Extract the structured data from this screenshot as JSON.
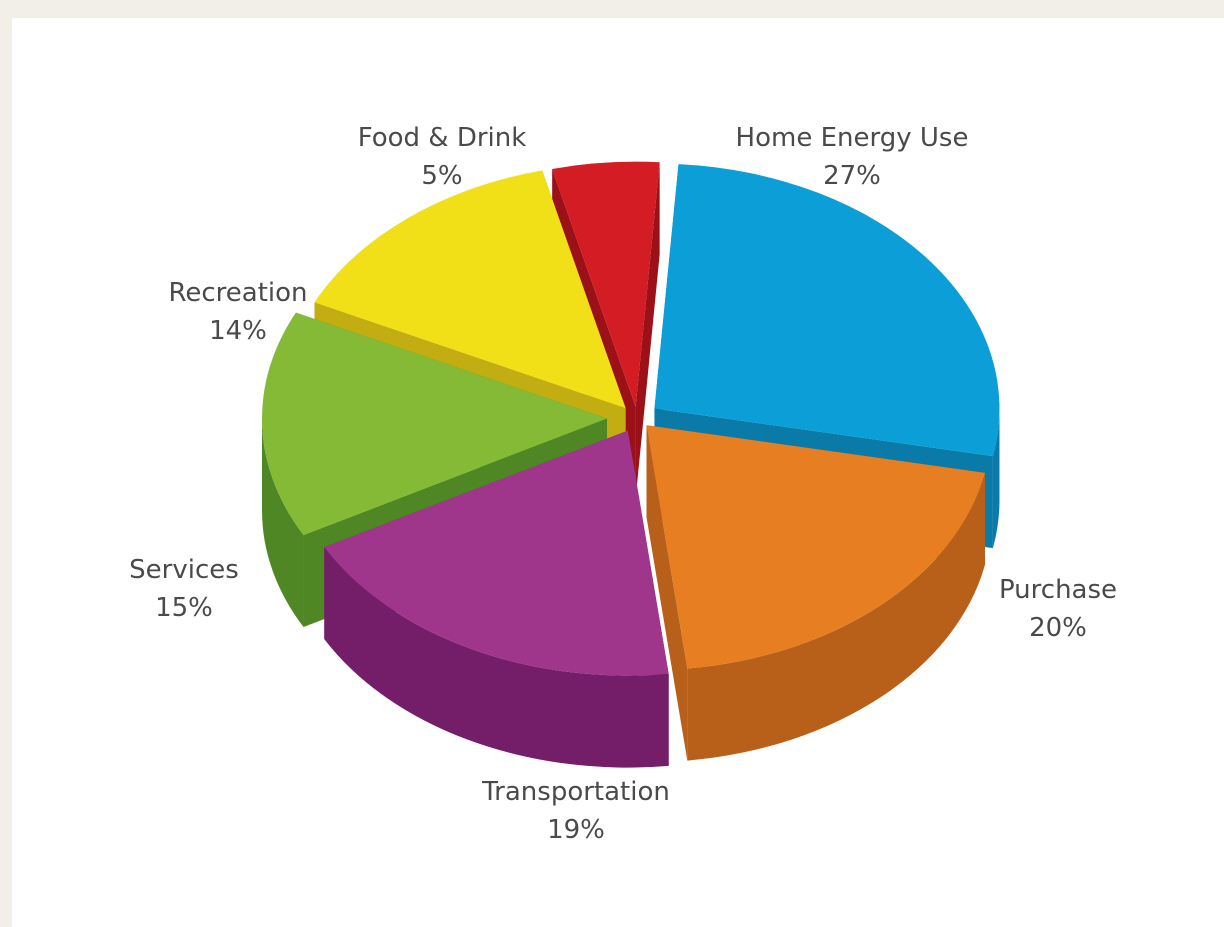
{
  "chart_data": {
    "type": "pie",
    "style": "3d-exploded",
    "slices": [
      {
        "label": "Home Energy Use",
        "value": 27,
        "value_label": "27%",
        "color": "#0c9ed6",
        "side_color": "#0a7ba8"
      },
      {
        "label": "Purchase",
        "value": 20,
        "value_label": "20%",
        "color": "#e77e22",
        "side_color": "#b8601a"
      },
      {
        "label": "Transportation",
        "value": 19,
        "value_label": "19%",
        "color": "#a0368c",
        "side_color": "#741d68"
      },
      {
        "label": "Services",
        "value": 15,
        "value_label": "15%",
        "color": "#84ba35",
        "side_color": "#4f8724"
      },
      {
        "label": "Recreation",
        "value": 14,
        "value_label": "14%",
        "color": "#f1df17",
        "side_color": "#c2ae12"
      },
      {
        "label": "Food & Drink",
        "value": 5,
        "value_label": "5%",
        "color": "#d41c24",
        "side_color": "#9c1118"
      }
    ],
    "legend": "none"
  }
}
